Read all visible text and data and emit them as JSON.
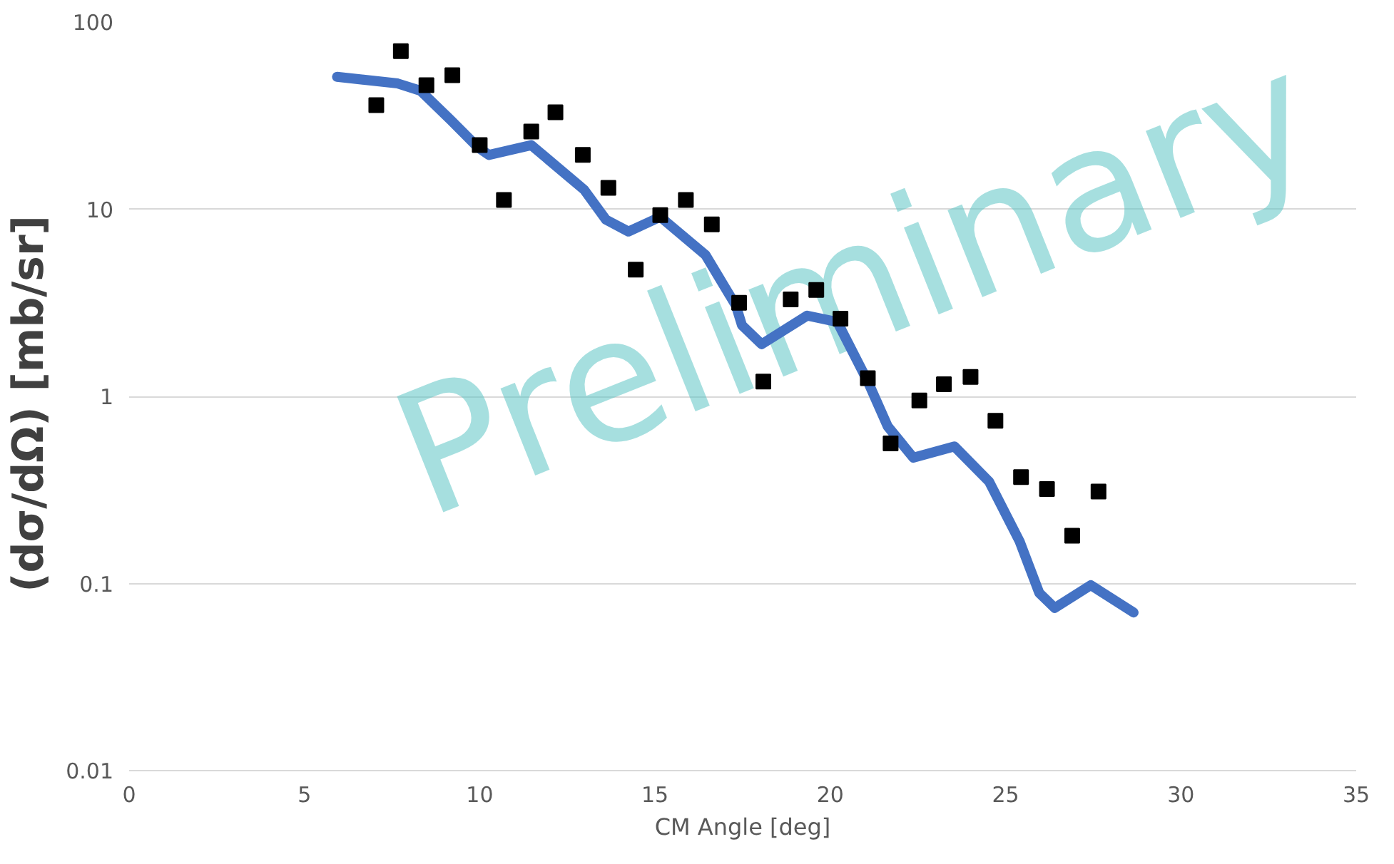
{
  "chart_data": {
    "type": "scatter",
    "xlabel": "CM Angle [deg]",
    "ylabel": "(dσ/dΩ)  [mb/sr]",
    "log": "y",
    "grid": "y",
    "xlim": [
      0,
      35
    ],
    "xticks": [
      0,
      5,
      10,
      15,
      20,
      25,
      30,
      35
    ],
    "ylim": [
      0.01,
      100
    ],
    "yticks": [
      0.01,
      0.1,
      1,
      10,
      100
    ],
    "annotations": [
      "Preliminary"
    ],
    "series": [
      {
        "type": "line",
        "color": "#4472c4",
        "marker": "none",
        "line_style": "solid",
        "x": [
          5.93,
          7.66,
          8.31,
          9.17,
          9.95,
          10.26,
          11.47,
          12.98,
          13.6,
          14.24,
          15.15,
          16.44,
          17.31,
          17.48,
          18.04,
          19.34,
          20.2,
          21.07,
          21.64,
          22.37,
          23.54,
          24.53,
          25.4,
          25.96,
          26.4,
          27.43,
          28.65
        ],
        "values": [
          51,
          47,
          43,
          30,
          21.4,
          19.5,
          22,
          12.7,
          8.8,
          7.6,
          9.1,
          5.7,
          3.05,
          2.4,
          1.9,
          2.7,
          2.5,
          1.2,
          0.69,
          0.47,
          0.54,
          0.35,
          0.168,
          0.089,
          0.074,
          0.098,
          0.07
        ]
      },
      {
        "color": "#000000",
        "marker": "square",
        "x": [
          7.05,
          7.75,
          8.48,
          9.22,
          10.0,
          10.69,
          11.47,
          12.16,
          12.94,
          13.67,
          14.45,
          15.15,
          15.88,
          16.62,
          17.4,
          18.09,
          18.87,
          19.6,
          20.29,
          21.07,
          21.72,
          22.54,
          23.24,
          24.0,
          24.71,
          25.44,
          26.18,
          26.9,
          27.65
        ],
        "values": [
          36,
          70,
          46,
          52,
          22,
          11.2,
          26,
          33,
          19.5,
          13,
          4.75,
          9.3,
          11.2,
          8.3,
          3.16,
          1.2,
          3.3,
          3.7,
          2.6,
          1.25,
          0.56,
          0.95,
          1.16,
          1.27,
          0.74,
          0.37,
          0.32,
          0.18,
          0.31
        ]
      }
    ]
  }
}
